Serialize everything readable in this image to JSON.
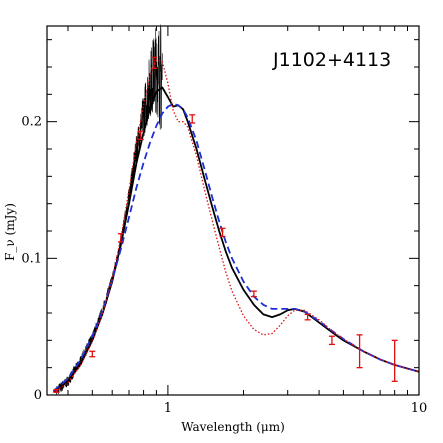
{
  "chart_data": {
    "type": "line",
    "title": "J1102+4113",
    "xlabel": "Wavelength (μm)",
    "ylabel": "F_ν (mJy)",
    "xscale": "log",
    "xlim": [
      0.33,
      10
    ],
    "ylim": [
      0,
      0.27
    ],
    "xticks": [
      {
        "value": 1,
        "label": "1"
      },
      {
        "value": 10,
        "label": "10"
      }
    ],
    "yticks": [
      {
        "value": 0,
        "label": "0"
      },
      {
        "value": 0.1,
        "label": "0.1"
      },
      {
        "value": 0.2,
        "label": "0.2"
      }
    ],
    "grid": false,
    "legend": "none",
    "series": [
      {
        "style": "spectrum",
        "color": "#000000",
        "x": [
          0.36,
          0.4,
          0.45,
          0.5,
          0.55,
          0.6,
          0.65,
          0.7,
          0.75,
          0.8,
          0.85,
          0.9,
          0.95
        ],
        "y": [
          0.003,
          0.01,
          0.025,
          0.042,
          0.062,
          0.085,
          0.112,
          0.145,
          0.18,
          0.205,
          0.228,
          0.24,
          0.23
        ]
      },
      {
        "style": "solid",
        "color": "#000000",
        "x": [
          0.35,
          0.4,
          0.45,
          0.5,
          0.55,
          0.6,
          0.65,
          0.7,
          0.75,
          0.8,
          0.85,
          0.9,
          0.95,
          1.0,
          1.05,
          1.1,
          1.15,
          1.2,
          1.3,
          1.4,
          1.5,
          1.6,
          1.7,
          1.8,
          2.0,
          2.2,
          2.4,
          2.6,
          2.8,
          3.0,
          3.2,
          3.5,
          4.0,
          4.5,
          5.0,
          6.0,
          7.0,
          8.0,
          10.0
        ],
        "y": [
          0.002,
          0.01,
          0.023,
          0.04,
          0.06,
          0.083,
          0.11,
          0.14,
          0.17,
          0.192,
          0.21,
          0.222,
          0.225,
          0.218,
          0.211,
          0.212,
          0.209,
          0.2,
          0.18,
          0.158,
          0.138,
          0.12,
          0.105,
          0.093,
          0.077,
          0.066,
          0.059,
          0.057,
          0.059,
          0.062,
          0.063,
          0.061,
          0.053,
          0.046,
          0.04,
          0.032,
          0.026,
          0.022,
          0.017
        ]
      },
      {
        "style": "dashed",
        "color": "#1f2fd6",
        "x": [
          0.35,
          0.4,
          0.45,
          0.5,
          0.55,
          0.6,
          0.65,
          0.7,
          0.75,
          0.8,
          0.85,
          0.9,
          0.95,
          1.0,
          1.05,
          1.1,
          1.15,
          1.2,
          1.3,
          1.4,
          1.5,
          1.6,
          1.7,
          1.8,
          2.0,
          2.2,
          2.4,
          2.6,
          2.8,
          3.0,
          3.2,
          3.5,
          4.0,
          4.5,
          5.0,
          6.0,
          7.0,
          8.0,
          10.0
        ],
        "y": [
          0.003,
          0.012,
          0.026,
          0.043,
          0.062,
          0.084,
          0.107,
          0.13,
          0.152,
          0.17,
          0.185,
          0.197,
          0.206,
          0.211,
          0.213,
          0.212,
          0.209,
          0.203,
          0.186,
          0.165,
          0.145,
          0.127,
          0.112,
          0.1,
          0.083,
          0.072,
          0.066,
          0.063,
          0.063,
          0.063,
          0.063,
          0.061,
          0.054,
          0.047,
          0.041,
          0.032,
          0.026,
          0.022,
          0.017
        ]
      },
      {
        "style": "dotted",
        "color": "#e01010",
        "x": [
          0.35,
          0.4,
          0.45,
          0.5,
          0.55,
          0.6,
          0.65,
          0.7,
          0.75,
          0.8,
          0.85,
          0.9,
          0.95,
          1.0,
          1.05,
          1.1,
          1.15,
          1.2,
          1.3,
          1.4,
          1.5,
          1.6,
          1.7,
          1.8,
          2.0,
          2.2,
          2.4,
          2.6,
          2.8,
          3.0,
          3.2,
          3.5,
          4.0,
          4.5,
          5.0,
          6.0,
          7.0,
          8.0,
          10.0
        ],
        "y": [
          0.002,
          0.009,
          0.022,
          0.039,
          0.06,
          0.085,
          0.115,
          0.15,
          0.185,
          0.212,
          0.234,
          0.245,
          0.244,
          0.228,
          0.208,
          0.2,
          0.2,
          0.196,
          0.175,
          0.15,
          0.128,
          0.108,
          0.09,
          0.076,
          0.058,
          0.048,
          0.044,
          0.045,
          0.051,
          0.058,
          0.062,
          0.062,
          0.055,
          0.047,
          0.041,
          0.032,
          0.026,
          0.022,
          0.017
        ]
      }
    ],
    "points": {
      "color": "#e01010",
      "x": [
        0.36,
        0.5,
        0.65,
        0.78,
        0.88,
        1.25,
        1.65,
        2.2,
        3.6,
        4.5,
        5.8,
        8.0
      ],
      "y": [
        0.003,
        0.03,
        0.115,
        0.19,
        0.243,
        0.202,
        0.119,
        0.074,
        0.057,
        0.04,
        0.032,
        0.025
      ],
      "err": [
        0.001,
        0.002,
        0.003,
        0.003,
        0.004,
        0.003,
        0.003,
        0.002,
        0.002,
        0.003,
        0.012,
        0.015
      ]
    }
  }
}
